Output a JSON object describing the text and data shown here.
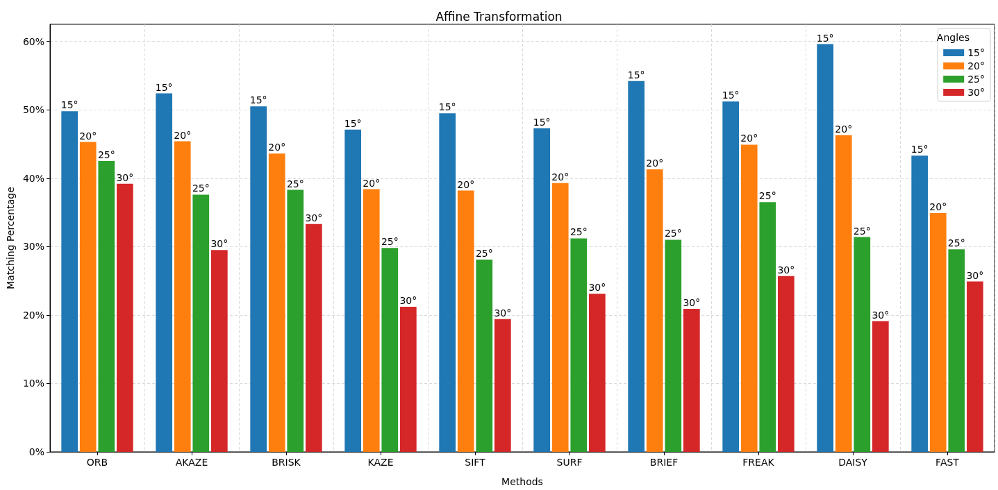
{
  "chart_data": {
    "type": "bar",
    "title": "Affine Transformation",
    "xlabel": "Methods",
    "ylabel": "Matching Percentage",
    "legend_title": "Angles",
    "categories": [
      "ORB",
      "AKAZE",
      "BRISK",
      "KAZE",
      "SIFT",
      "SURF",
      "BRIEF",
      "FREAK",
      "DAISY",
      "FAST"
    ],
    "series": [
      {
        "name": "15°",
        "color": "#1f77b4",
        "values": [
          49.8,
          52.4,
          50.5,
          47.1,
          49.5,
          47.3,
          54.2,
          51.2,
          59.6,
          43.3
        ]
      },
      {
        "name": "20°",
        "color": "#ff7f0e",
        "values": [
          45.3,
          45.4,
          43.6,
          38.4,
          38.2,
          39.3,
          41.3,
          44.9,
          46.3,
          34.9
        ]
      },
      {
        "name": "25°",
        "color": "#2ca02c",
        "values": [
          42.5,
          37.6,
          38.3,
          29.8,
          28.1,
          31.2,
          31.0,
          36.5,
          31.4,
          29.6
        ]
      },
      {
        "name": "30°",
        "color": "#d62728",
        "values": [
          39.2,
          29.5,
          33.3,
          21.2,
          19.4,
          23.1,
          20.9,
          25.7,
          19.1,
          24.9
        ]
      }
    ],
    "annotations": [
      "15°",
      "20°",
      "25°",
      "30°",
      "15°",
      "20°",
      "25°",
      "30°",
      "15°",
      "20°",
      "25°",
      "30°",
      "15°",
      "20°",
      "25°",
      "30°",
      "15°",
      "20°",
      "25°",
      "30°",
      "15°",
      "20°",
      "25°",
      "30°",
      "15°",
      "20°",
      "25°",
      "30°",
      "15°",
      "20°",
      "25°",
      "30°",
      "15°",
      "20°",
      "25°",
      "30°",
      "15°",
      "20°",
      "25°",
      "30°"
    ],
    "ylim": [
      0,
      62.5
    ],
    "yticks": [
      {
        "value": 0,
        "label": "0%"
      },
      {
        "value": 10,
        "label": "10%"
      },
      {
        "value": 20,
        "label": "20%"
      },
      {
        "value": 30,
        "label": "30%"
      },
      {
        "value": 40,
        "label": "40%"
      },
      {
        "value": 50,
        "label": "50%"
      },
      {
        "value": 60,
        "label": "60%"
      }
    ],
    "grid": true,
    "legend": "top right"
  }
}
